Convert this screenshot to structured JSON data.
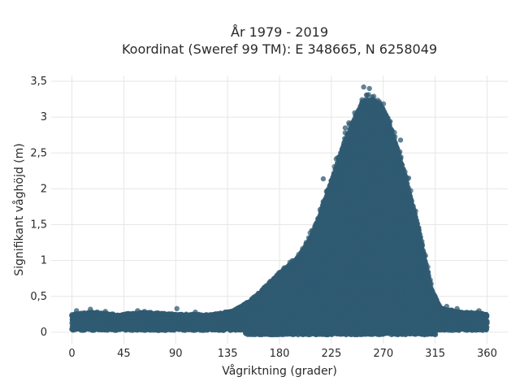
{
  "chart_data": {
    "type": "scatter",
    "title_line1": "År 1979 - 2019",
    "title_line2": "Koordinat (Sweref 99 TM): E 348665, N 6258049",
    "xlabel": "Vågriktning (grader)",
    "ylabel": "Signifikant våghöjd (m)",
    "xlim": [
      -18,
      378
    ],
    "ylim": [
      -0.16,
      3.58
    ],
    "xticks": [
      0,
      45,
      90,
      135,
      180,
      225,
      270,
      315,
      360
    ],
    "xtick_labels": [
      "0",
      "45",
      "90",
      "135",
      "180",
      "225",
      "270",
      "315",
      "360"
    ],
    "yticks": [
      0,
      0.5,
      1,
      1.5,
      2,
      2.5,
      3,
      3.5
    ],
    "ytick_labels": [
      "0",
      "0,5",
      "1",
      "1,5",
      "2",
      "2,5",
      "3",
      "3,5"
    ],
    "grid": true,
    "marker_color": "#2f5a72",
    "envelope_note": "dense scatter; upper envelope of significant wave height vs direction",
    "envelope": [
      {
        "x": 0,
        "y": 0.25
      },
      {
        "x": 20,
        "y": 0.28
      },
      {
        "x": 40,
        "y": 0.24
      },
      {
        "x": 60,
        "y": 0.28
      },
      {
        "x": 90,
        "y": 0.25
      },
      {
        "x": 120,
        "y": 0.24
      },
      {
        "x": 140,
        "y": 0.3
      },
      {
        "x": 155,
        "y": 0.45
      },
      {
        "x": 165,
        "y": 0.6
      },
      {
        "x": 180,
        "y": 0.85
      },
      {
        "x": 195,
        "y": 1.05
      },
      {
        "x": 205,
        "y": 1.3
      },
      {
        "x": 215,
        "y": 1.7
      },
      {
        "x": 225,
        "y": 2.2
      },
      {
        "x": 235,
        "y": 2.7
      },
      {
        "x": 245,
        "y": 3.1
      },
      {
        "x": 252,
        "y": 3.35
      },
      {
        "x": 260,
        "y": 3.38
      },
      {
        "x": 268,
        "y": 3.3
      },
      {
        "x": 275,
        "y": 3.05
      },
      {
        "x": 285,
        "y": 2.5
      },
      {
        "x": 293,
        "y": 2.0
      },
      {
        "x": 300,
        "y": 1.55
      },
      {
        "x": 307,
        "y": 1.0
      },
      {
        "x": 312,
        "y": 0.6
      },
      {
        "x": 320,
        "y": 0.35
      },
      {
        "x": 335,
        "y": 0.28
      },
      {
        "x": 350,
        "y": 0.27
      },
      {
        "x": 360,
        "y": 0.25
      }
    ],
    "outliers": [
      {
        "x": 4,
        "y": 0.3
      },
      {
        "x": 16,
        "y": 0.32
      },
      {
        "x": 29,
        "y": 0.29
      },
      {
        "x": 57,
        "y": 0.3
      },
      {
        "x": 63,
        "y": 0.29
      },
      {
        "x": 91,
        "y": 0.33
      },
      {
        "x": 107,
        "y": 0.28
      },
      {
        "x": 218,
        "y": 2.14
      },
      {
        "x": 237,
        "y": 2.85
      },
      {
        "x": 253,
        "y": 3.42
      },
      {
        "x": 258,
        "y": 3.4
      },
      {
        "x": 285,
        "y": 2.68
      },
      {
        "x": 292,
        "y": 2.15
      },
      {
        "x": 325,
        "y": 0.36
      },
      {
        "x": 334,
        "y": 0.33
      },
      {
        "x": 353,
        "y": 0.3
      }
    ]
  }
}
